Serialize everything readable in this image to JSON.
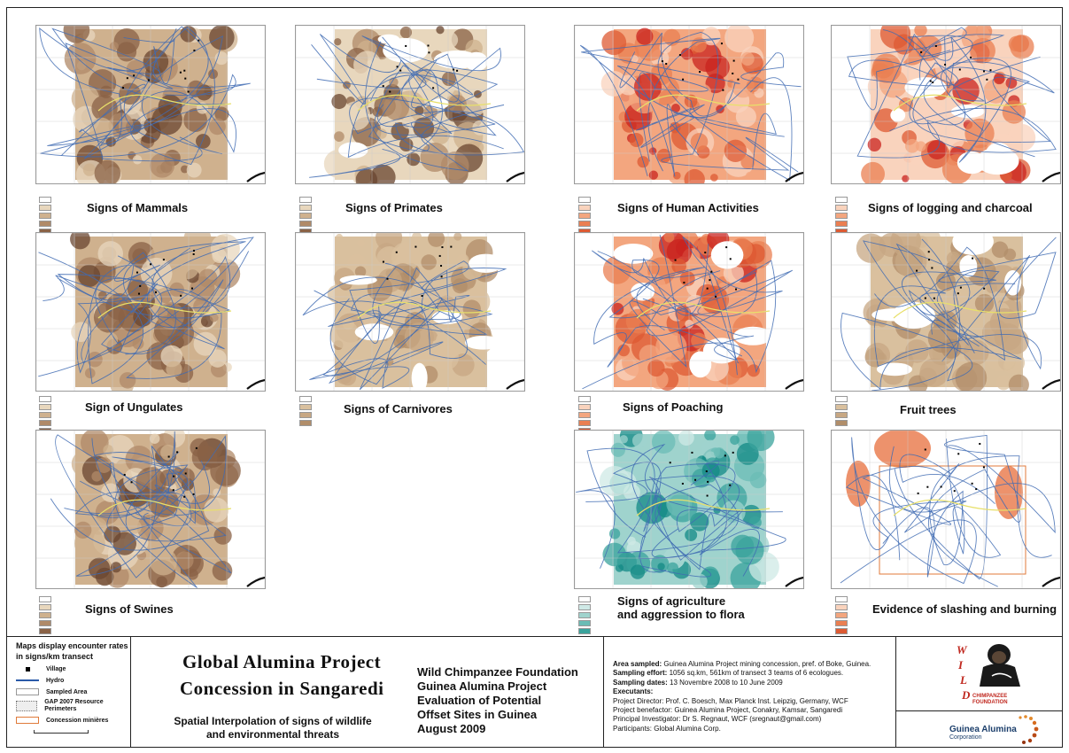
{
  "panels": [
    {
      "id": "mammals",
      "title": "Signs of Mammals",
      "theme": "brown"
    },
    {
      "id": "primates",
      "title": "Signs of Primates",
      "theme": "brown-light"
    },
    {
      "id": "human",
      "title": "Signs of Human Activities",
      "theme": "red"
    },
    {
      "id": "logging",
      "title": "Signs of logging and charcoal",
      "theme": "red-light"
    },
    {
      "id": "ungulates",
      "title": "Sign of Ungulates",
      "theme": "brown"
    },
    {
      "id": "carnivores",
      "title": "Signs of Carnivores",
      "theme": "tan"
    },
    {
      "id": "poaching",
      "title": "Signs of Poaching",
      "theme": "red"
    },
    {
      "id": "fruit",
      "title": "Fruit trees",
      "theme": "tan"
    },
    {
      "id": "swines",
      "title": "Signs of Swines",
      "theme": "brown"
    },
    {
      "id": "agriculture",
      "title_line1": "Signs of agriculture",
      "title_line2": "and aggression to flora",
      "theme": "teal"
    },
    {
      "id": "slashing",
      "title": "Evidence of slashing and burning",
      "theme": "red-sparse"
    }
  ],
  "colors": {
    "brown": [
      "#e8d7bd",
      "#cfb18e",
      "#b08a68",
      "#8a6246",
      "#6a4530"
    ],
    "red": [
      "#f9d3bd",
      "#f3a67f",
      "#ea7f52",
      "#dd5a33",
      "#c9231f"
    ],
    "teal": [
      "#cfe9e6",
      "#9fd3cd",
      "#6bbcb5",
      "#3aa39c",
      "#138a86"
    ],
    "tan": [
      "#d9c09e",
      "#c7a783",
      "#b18e6a"
    ]
  },
  "legend": {
    "heading": "Maps display encounter rates in signs/km transect",
    "items": [
      {
        "label": "Village",
        "symbol": "square-black"
      },
      {
        "label": "Hydro",
        "symbol": "line-blue"
      },
      {
        "label": "Sampled Area",
        "symbol": "box-gray"
      },
      {
        "label": "GAP 2007 Resource Perimeters",
        "symbol": "box-dotted"
      },
      {
        "label": "Concession minières",
        "symbol": "box-orange"
      }
    ]
  },
  "project": {
    "title_line1": "Global Alumina Project",
    "title_line2": "Concession in Sangaredi",
    "subtitle_line1": "Spatial Interpolation of signs of wildlife",
    "subtitle_line2": "and environmental threats"
  },
  "org": {
    "line1": "Wild Chimpanzee Foundation",
    "line2": "Guinea Alumina Project",
    "line3": "Evaluation of Potential",
    "line4": "Offset Sites in Guinea",
    "line5": "August 2009"
  },
  "info": {
    "area_label": "Area sampled:",
    "area_value": " Guinea Alumina Project mining concession, pref. of Boke, Guinea.",
    "effort_label": "Sampling effort:",
    "effort_value": " 1056 sq.km, 561km of transect 3 teams of 6 ecologues.",
    "dates_label": "Sampling dates:",
    "dates_value": " 13 Novembre 2008 to 10 June 2009",
    "executants": "Executants:",
    "director": "Project Director: Prof. C. Boesch, Max Planck Inst. Leipzig, Germany, WCF",
    "benefactor": "Project benefactor: Guinea Alumina Project, Conakry, Kamsar, Sangaredi",
    "investigator": "Principal Investigator: Dr S. Regnaut, WCF (sregnaut@gmail.com)",
    "participants": "Participants: Global Alumina Corp."
  },
  "logos": {
    "wild_letters": [
      "W",
      "I",
      "L",
      "D"
    ],
    "chimp_text": "CHIMPANZEE",
    "foundation_text": "FOUNDATION",
    "guinea_alumina": "Guinea Alumina",
    "corporation": "Corporation"
  }
}
